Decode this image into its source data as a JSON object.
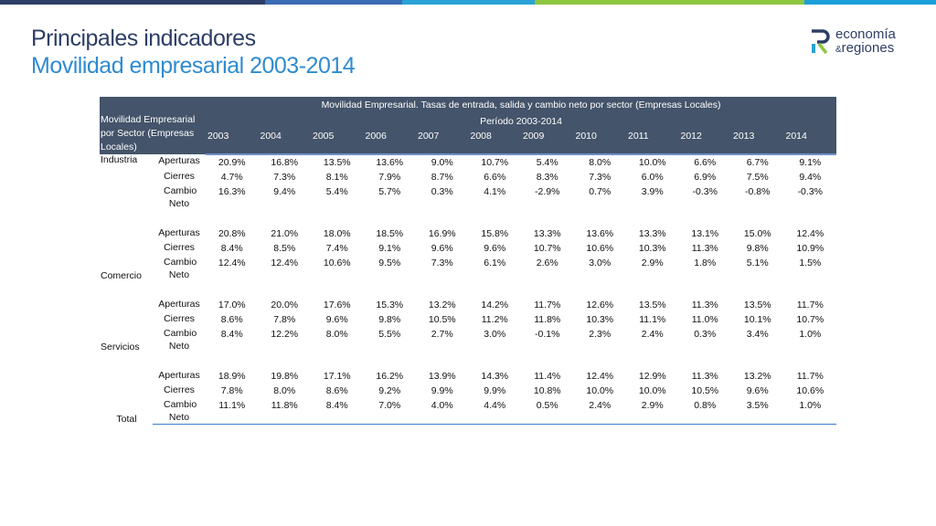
{
  "header": {
    "title": "Principales indicadores",
    "subtitle": "Movilidad empresarial 2003-2014",
    "logo_line1": "economía",
    "logo_amp": "&",
    "logo_line2": "regiones"
  },
  "colors": {
    "title": "#2d3e66",
    "subtitle": "#2f8bd0",
    "table_header_bg": "#44546a",
    "table_rule": "#3a7dc9",
    "topbar": [
      "#2d3e66",
      "#3a6cb5",
      "#2aa2d6",
      "#8dc63f",
      "#1b9fd9"
    ]
  },
  "table": {
    "caption": "Movilidad Empresarial. Tasas de entrada, salida y cambio neto por sector (Empresas Locales)",
    "period": "Período 2003-2014",
    "corner": "Movilidad Empresarial por Sector (Empresas Locales)",
    "years": [
      "2003",
      "2004",
      "2005",
      "2006",
      "2007",
      "2008",
      "2009",
      "2010",
      "2011",
      "2012",
      "2013",
      "2014"
    ],
    "sectors": [
      {
        "name": "Industria",
        "rows": [
          {
            "metric": "Aperturas",
            "values": [
              "20.9%",
              "16.8%",
              "13.5%",
              "13.6%",
              "9.0%",
              "10.7%",
              "5.4%",
              "8.0%",
              "10.0%",
              "6.6%",
              "6.7%",
              "9.1%"
            ]
          },
          {
            "metric": "Cierres",
            "values": [
              "4.7%",
              "7.3%",
              "8.1%",
              "7.9%",
              "8.7%",
              "6.6%",
              "8.3%",
              "7.3%",
              "6.0%",
              "6.9%",
              "7.5%",
              "9.4%"
            ]
          },
          {
            "metric": "Cambio Neto",
            "values": [
              "16.3%",
              "9.4%",
              "5.4%",
              "5.7%",
              "0.3%",
              "4.1%",
              "-2.9%",
              "0.7%",
              "3.9%",
              "-0.3%",
              "-0.8%",
              "-0.3%"
            ]
          }
        ]
      },
      {
        "name": "Comercio",
        "rows": [
          {
            "metric": "Aperturas",
            "values": [
              "20.8%",
              "21.0%",
              "18.0%",
              "18.5%",
              "16.9%",
              "15.8%",
              "13.3%",
              "13.6%",
              "13.3%",
              "13.1%",
              "15.0%",
              "12.4%"
            ]
          },
          {
            "metric": "Cierres",
            "values": [
              "8.4%",
              "8.5%",
              "7.4%",
              "9.1%",
              "9.6%",
              "9.6%",
              "10.7%",
              "10.6%",
              "10.3%",
              "11.3%",
              "9.8%",
              "10.9%"
            ]
          },
          {
            "metric": "Cambio Neto",
            "values": [
              "12.4%",
              "12.4%",
              "10.6%",
              "9.5%",
              "7.3%",
              "6.1%",
              "2.6%",
              "3.0%",
              "2.9%",
              "1.8%",
              "5.1%",
              "1.5%"
            ]
          }
        ]
      },
      {
        "name": "Servicios",
        "rows": [
          {
            "metric": "Aperturas",
            "values": [
              "17.0%",
              "20.0%",
              "17.6%",
              "15.3%",
              "13.2%",
              "14.2%",
              "11.7%",
              "12.6%",
              "13.5%",
              "11.3%",
              "13.5%",
              "11.7%"
            ]
          },
          {
            "metric": "Cierres",
            "values": [
              "8.6%",
              "7.8%",
              "9.6%",
              "9.8%",
              "10.5%",
              "11.2%",
              "11.8%",
              "10.3%",
              "11.1%",
              "11.0%",
              "10.1%",
              "10.7%"
            ]
          },
          {
            "metric": "Cambio Neto",
            "values": [
              "8.4%",
              "12.2%",
              "8.0%",
              "5.5%",
              "2.7%",
              "3.0%",
              "-0.1%",
              "2.3%",
              "2.4%",
              "0.3%",
              "3.4%",
              "1.0%"
            ]
          }
        ]
      },
      {
        "name": "Total",
        "rows": [
          {
            "metric": "Aperturas",
            "values": [
              "18.9%",
              "19.8%",
              "17.1%",
              "16.2%",
              "13.9%",
              "14.3%",
              "11.4%",
              "12.4%",
              "12.9%",
              "11.3%",
              "13.2%",
              "11.7%"
            ]
          },
          {
            "metric": "Cierres",
            "values": [
              "7.8%",
              "8.0%",
              "8.6%",
              "9.2%",
              "9.9%",
              "9.9%",
              "10.8%",
              "10.0%",
              "10.0%",
              "10.5%",
              "9.6%",
              "10.6%"
            ]
          },
          {
            "metric": "Cambio Neto",
            "values": [
              "11.1%",
              "11.8%",
              "8.4%",
              "7.0%",
              "4.0%",
              "4.4%",
              "0.5%",
              "2.4%",
              "2.9%",
              "0.8%",
              "3.5%",
              "1.0%"
            ]
          }
        ]
      }
    ]
  }
}
